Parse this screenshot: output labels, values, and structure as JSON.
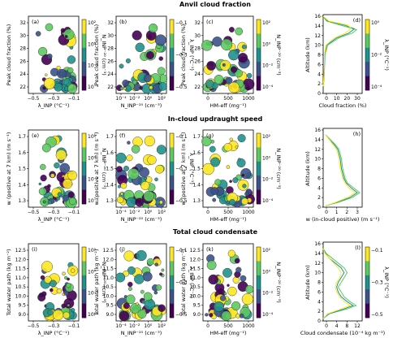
{
  "chart_data": {
    "type": "scatter",
    "colormap": [
      "#440154",
      "#3b528b",
      "#21918c",
      "#5ec962",
      "#fde725"
    ],
    "rows": [
      {
        "title": "Anvil cloud fraction",
        "ylabel": "Peak cloud fraction (%)",
        "ylim": [
          21,
          33
        ],
        "yticks": [
          "22",
          "24",
          "26",
          "28",
          "30",
          "32"
        ],
        "profile": {
          "label": "(d)",
          "xlabel": "Cloud fraction (%)",
          "xlim": [
            0,
            35
          ],
          "xticks": [
            "0",
            "10",
            "20",
            "30"
          ],
          "cbar_label": "λ_INP (°C⁻¹)",
          "cbar_ticks": [
            "10⁰",
            "10⁻²",
            "10⁻⁴"
          ]
        },
        "panels": [
          {
            "label": "(a)",
            "xlabel": "λ_INP (°C⁻¹)",
            "xticks": [
              "−0.5",
              "−0.3",
              "−0.1"
            ],
            "cbar_label": "N_INP⁻²⁰ (cm⁻³)",
            "cbar_ticks": [
              "10²",
              "10⁰",
              "10⁻²",
              "10⁻⁴"
            ]
          },
          {
            "label": "(b)",
            "xlabel": "N_INP⁻²⁰ (cm⁻³)",
            "xticks": [
              "10⁻⁴",
              "10⁻²",
              "10⁰",
              "10²"
            ],
            "cbar_label": "λ_INP (°C⁻¹)",
            "cbar_ticks": [
              "−0.1",
              "−0.3",
              "−0.5"
            ]
          },
          {
            "label": "(c)",
            "xlabel": "HM-eff (mg⁻¹)",
            "xticks": [
              "0",
              "500",
              "1000"
            ],
            "cbar_label": "N_INP⁻²⁰ (cm⁻³)",
            "cbar_ticks": [
              "10²",
              "10⁰",
              "10⁻²",
              "10⁻⁴"
            ]
          }
        ]
      },
      {
        "title": "In-cloud updraught speed",
        "ylabel": "w (positive at 7 km) (m s⁻¹)",
        "ylim": [
          1.25,
          1.72
        ],
        "yticks": [
          "1.3",
          "1.4",
          "1.5",
          "1.6",
          "1.7"
        ],
        "profile": {
          "label": "(h)",
          "xlabel": "w (in-cloud positive)  (m s⁻¹)",
          "xlim": [
            0,
            3.2
          ],
          "xticks": [
            "0",
            "1",
            "2",
            "3"
          ],
          "cbar_label": "",
          "cbar_ticks": []
        },
        "panels": [
          {
            "label": "(e)",
            "xlabel": "λ_INP (°C⁻¹)",
            "xticks": [
              "−0.5",
              "−0.3",
              "−0.1"
            ],
            "cbar_label": "N_INP⁻²⁰ (cm⁻³)",
            "cbar_ticks": [
              "10²",
              "10⁰",
              "10⁻²",
              "10⁻⁴"
            ]
          },
          {
            "label": "(f)",
            "xlabel": "N_INP⁻²⁰ (cm⁻³)",
            "xticks": [
              "10⁻⁴",
              "10⁻²",
              "10⁰",
              "10²"
            ],
            "cbar_label": "λ_INP (°C⁻¹)",
            "cbar_ticks": [
              "−0.1",
              "−0.3",
              "−0.5"
            ]
          },
          {
            "label": "(g)",
            "xlabel": "HM-eff (mg⁻¹)",
            "xticks": [
              "0",
              "500",
              "1000"
            ],
            "cbar_label": "N_INP⁻²⁰ (cm⁻³)",
            "cbar_ticks": [
              "10²",
              "10⁰",
              "10⁻²",
              "10⁻⁴"
            ]
          }
        ]
      },
      {
        "title": "Total cloud condensate",
        "ylabel": "Total water path (kg m⁻²)",
        "ylim": [
          8.9,
          12.7
        ],
        "yticks": [
          "9.0",
          "9.5",
          "10.0",
          "10.5",
          "11.0",
          "11.5",
          "12.0",
          "12.5"
        ],
        "profile": {
          "label": "(l)",
          "xlabel": "Cloud condensate (10⁻⁴ kg m⁻³)",
          "xlim": [
            0,
            13
          ],
          "xticks": [
            "0",
            "4",
            "8",
            "12"
          ],
          "cbar_label": "λ_INP (°C⁻¹)",
          "cbar_ticks": [
            "−0.1",
            "−0.3",
            "−0.5"
          ]
        },
        "panels": [
          {
            "label": "(i)",
            "xlabel": "λ_INP (°C⁻¹)",
            "xticks": [
              "−0.5",
              "−0.3",
              "−0.1"
            ],
            "cbar_label": "N_INP⁻²⁰ (cm⁻³)",
            "cbar_ticks": [
              "10²",
              "10⁰",
              "10⁻²",
              "10⁻⁴"
            ]
          },
          {
            "label": "(j)",
            "xlabel": "N_INP⁻²⁰ (cm⁻³)",
            "xticks": [
              "10⁻⁴",
              "10⁻²",
              "10⁰",
              "10²"
            ],
            "cbar_label": "λ_INP (°C⁻¹)",
            "cbar_ticks": [
              "−0.1",
              "−0.3",
              "−0.5"
            ]
          },
          {
            "label": "(k)",
            "xlabel": "HM-eff (mg⁻¹)",
            "xticks": [
              "0",
              "500",
              "1000"
            ],
            "cbar_label": "N_INP⁻²⁰ (cm⁻³)",
            "cbar_ticks": [
              "10²",
              "10⁰",
              "10⁻²",
              "10⁻⁴"
            ]
          }
        ]
      }
    ],
    "profile_yaxis": {
      "label": "Altitude (km)",
      "ylim": [
        0,
        16
      ],
      "yticks": [
        "0",
        "2",
        "4",
        "6",
        "8",
        "10",
        "12",
        "14",
        "16"
      ]
    },
    "profiles": [
      [
        [
          0,
          1.5
        ],
        [
          0.5,
          2.5
        ],
        [
          1,
          4
        ],
        [
          1.3,
          6
        ],
        [
          1.6,
          8
        ],
        [
          4,
          10
        ],
        [
          14,
          11.5
        ],
        [
          26,
          12.5
        ],
        [
          30,
          13.2
        ],
        [
          18,
          14
        ],
        [
          3,
          15
        ],
        [
          0,
          16
        ]
      ],
      [
        [
          0,
          1.5
        ],
        [
          0.5,
          2.5
        ],
        [
          0.9,
          4
        ],
        [
          1.2,
          6
        ],
        [
          1.4,
          8
        ],
        [
          3,
          10
        ],
        [
          12,
          11.5
        ],
        [
          23,
          12.5
        ],
        [
          28,
          13.4
        ],
        [
          20,
          14.1
        ],
        [
          4,
          15
        ],
        [
          0,
          16
        ]
      ],
      [
        [
          0,
          1.5
        ],
        [
          0.4,
          2.5
        ],
        [
          0.8,
          4
        ],
        [
          1.0,
          6
        ],
        [
          1.2,
          8
        ],
        [
          2.5,
          10
        ],
        [
          10,
          11.5
        ],
        [
          20,
          12.5
        ],
        [
          25,
          13.5
        ],
        [
          22,
          14.2
        ],
        [
          5,
          15
        ],
        [
          0,
          16
        ]
      ]
    ],
    "w_profiles": [
      [
        [
          0.2,
          0.3
        ],
        [
          1.2,
          1.0
        ],
        [
          2.4,
          2.0
        ],
        [
          3.0,
          3.0
        ],
        [
          2.5,
          4.0
        ],
        [
          2.0,
          5.0
        ],
        [
          1.8,
          6.0
        ],
        [
          1.7,
          7.0
        ],
        [
          1.6,
          8.0
        ],
        [
          1.5,
          10.0
        ],
        [
          1.3,
          12.0
        ],
        [
          1.0,
          13.0
        ],
        [
          0.6,
          14.0
        ],
        [
          0.2,
          15.0
        ]
      ],
      [
        [
          0.2,
          0.3
        ],
        [
          1.1,
          1.0
        ],
        [
          2.2,
          2.0
        ],
        [
          2.8,
          3.0
        ],
        [
          2.3,
          4.0
        ],
        [
          1.9,
          5.0
        ],
        [
          1.7,
          6.0
        ],
        [
          1.6,
          7.0
        ],
        [
          1.5,
          8.0
        ],
        [
          1.4,
          10.0
        ],
        [
          1.2,
          12.0
        ],
        [
          0.9,
          13.0
        ],
        [
          0.5,
          14.0
        ],
        [
          0.2,
          15.0
        ]
      ],
      [
        [
          0.2,
          0.3
        ],
        [
          1.0,
          1.0
        ],
        [
          2.0,
          2.0
        ],
        [
          2.6,
          3.0
        ],
        [
          2.1,
          4.0
        ],
        [
          1.8,
          5.0
        ],
        [
          1.6,
          6.0
        ],
        [
          1.5,
          7.0
        ],
        [
          1.4,
          8.0
        ],
        [
          1.3,
          10.0
        ],
        [
          1.1,
          12.0
        ],
        [
          0.8,
          13.0
        ],
        [
          0.5,
          14.0
        ],
        [
          0.2,
          15.0
        ]
      ]
    ],
    "c_profiles": [
      [
        [
          0,
          0.5
        ],
        [
          2,
          1.5
        ],
        [
          8,
          2.5
        ],
        [
          11,
          3.2
        ],
        [
          9,
          4.0
        ],
        [
          7,
          5.0
        ],
        [
          6,
          6.0
        ],
        [
          5,
          7.0
        ],
        [
          6,
          8.0
        ],
        [
          7,
          9.0
        ],
        [
          8,
          10.0
        ],
        [
          7,
          11.0
        ],
        [
          5,
          12.0
        ],
        [
          3,
          13.0
        ],
        [
          1,
          14.0
        ],
        [
          0,
          15.0
        ]
      ],
      [
        [
          0,
          0.5
        ],
        [
          2,
          1.5
        ],
        [
          7,
          2.5
        ],
        [
          10,
          3.2
        ],
        [
          8,
          4.0
        ],
        [
          6,
          5.0
        ],
        [
          5,
          6.0
        ],
        [
          4.5,
          7.0
        ],
        [
          5,
          8.0
        ],
        [
          6,
          9.0
        ],
        [
          7,
          10.0
        ],
        [
          6,
          11.0
        ],
        [
          4,
          12.0
        ],
        [
          2,
          13.0
        ],
        [
          0.8,
          14.0
        ],
        [
          0,
          15.0
        ]
      ],
      [
        [
          0,
          0.5
        ],
        [
          1.5,
          1.5
        ],
        [
          6,
          2.5
        ],
        [
          9,
          3.2
        ],
        [
          7,
          4.0
        ],
        [
          5.5,
          5.0
        ],
        [
          4.5,
          6.0
        ],
        [
          4,
          7.0
        ],
        [
          4.5,
          8.0
        ],
        [
          5.5,
          9.0
        ],
        [
          6,
          10.0
        ],
        [
          5,
          11.0
        ],
        [
          3.5,
          12.0
        ],
        [
          2,
          13.0
        ],
        [
          0.6,
          14.0
        ],
        [
          0,
          15.0
        ]
      ]
    ]
  }
}
